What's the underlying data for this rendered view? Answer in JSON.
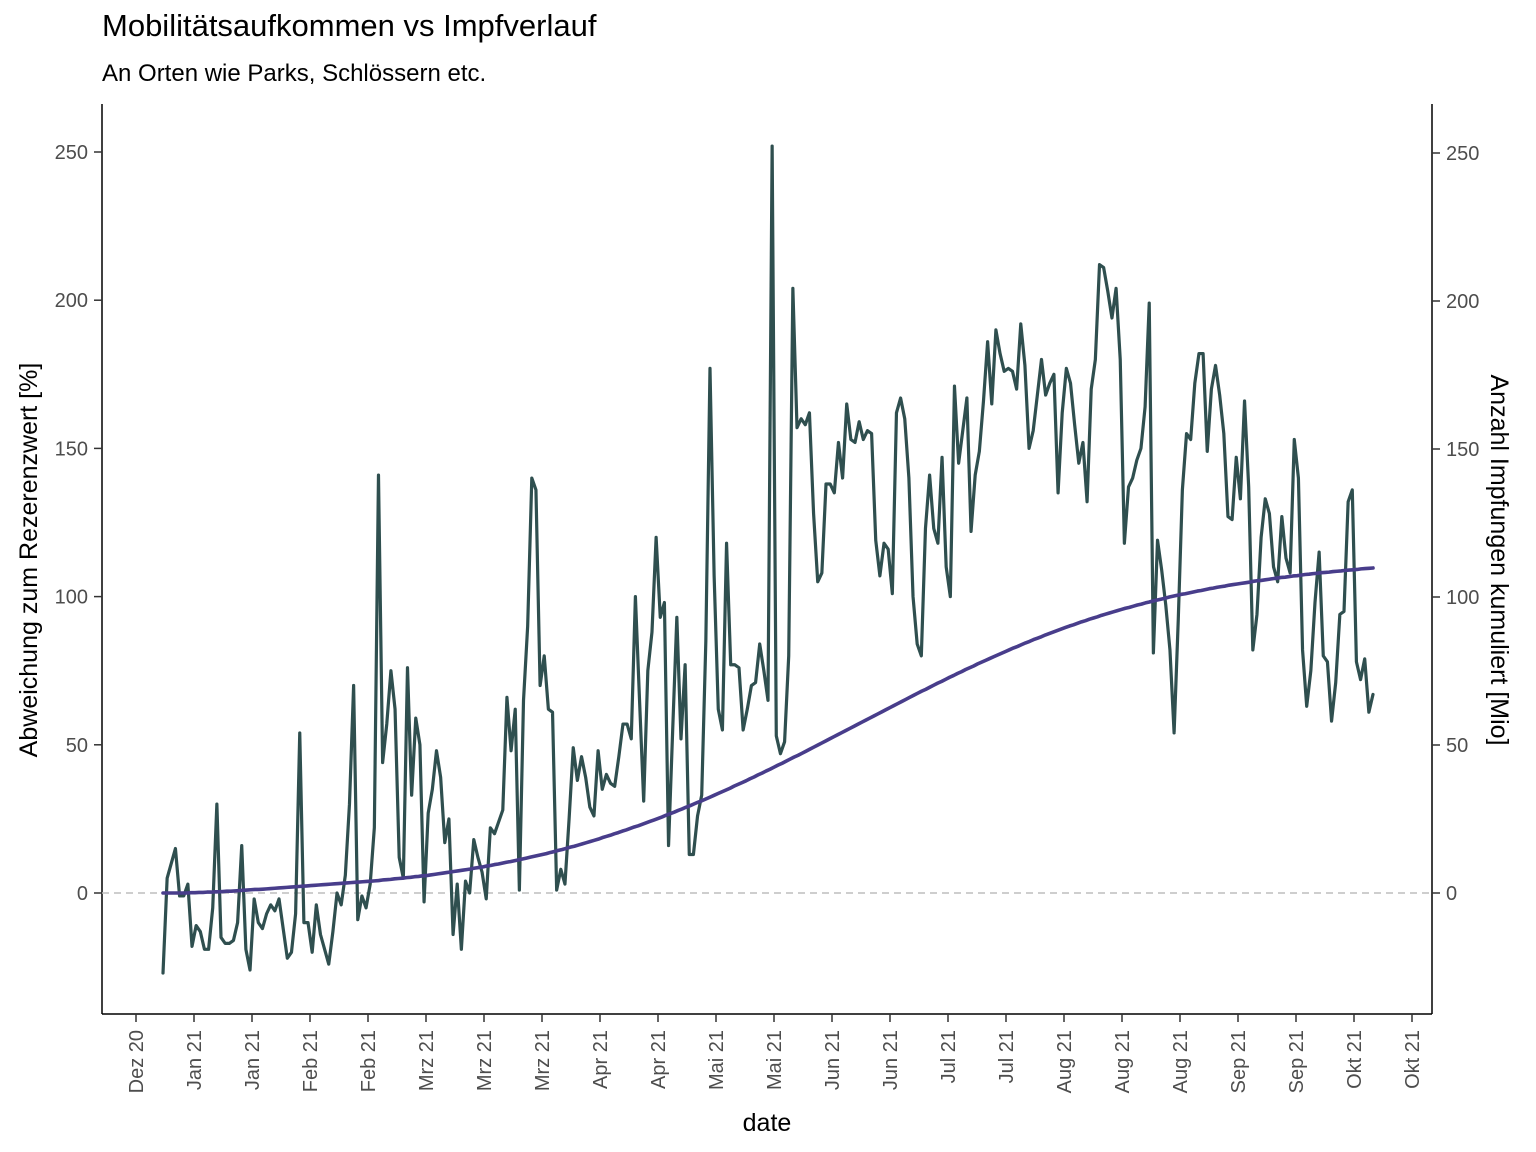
{
  "chart_data": {
    "type": "line",
    "title": "Mobilitätsaufkommen vs Impfverlauf",
    "subtitle": "An Orten wie Parks, Schlössern etc.",
    "xlabel": "date",
    "ylabel": "Abweichung zum Rezerenzwert [%]",
    "ylabel_right": "Anzahl Impfungen kumuliert [Mio]",
    "x_ticks": [
      "Dez 20",
      "Jan 21",
      "Jan 21",
      "Feb 21",
      "Feb 21",
      "Mrz 21",
      "Mrz 21",
      "Mrz 21",
      "Apr 21",
      "Apr 21",
      "Mai 21",
      "Mai 21",
      "Jun 21",
      "Jun 21",
      "Jul 21",
      "Jul 21",
      "Aug 21",
      "Aug 21",
      "Aug 21",
      "Sep 21",
      "Sep 21",
      "Okt 21",
      "Okt 21"
    ],
    "y_ticks_left": [
      0,
      50,
      100,
      150,
      200,
      250
    ],
    "y_ticks_right": [
      0,
      50,
      100,
      150,
      200,
      250
    ],
    "ylim": [
      -41,
      266
    ],
    "reference_line": 0,
    "grid": false,
    "series": [
      {
        "name": "",
        "color": "#2f4f4f",
        "values": [
          -27,
          5,
          10,
          15,
          -1,
          -1,
          3,
          -18,
          -11,
          -13,
          -19,
          -19,
          -5,
          30,
          -15,
          -17,
          -17,
          -16,
          -10,
          16,
          -19,
          -26,
          -2,
          -10,
          -12,
          -7,
          -4,
          -6,
          -2,
          -12,
          -22,
          -20,
          -7,
          54,
          -10,
          -10,
          -20,
          -4,
          -14,
          -19,
          -24,
          -13,
          0,
          -4,
          6,
          30,
          70,
          -9,
          -1,
          -5,
          3,
          22,
          141,
          44,
          57,
          75,
          62,
          12,
          5,
          76,
          33,
          59,
          50,
          -3,
          27,
          35,
          48,
          39,
          17,
          25,
          -14,
          3,
          -19,
          4,
          0,
          18,
          12,
          7,
          -2,
          22,
          20,
          24,
          28,
          66,
          48,
          62,
          1,
          65,
          90,
          140,
          136,
          70,
          80,
          62,
          61,
          1,
          8,
          3,
          25,
          49,
          38,
          46,
          39,
          29,
          26,
          48,
          35,
          40,
          37,
          36,
          46,
          57,
          57,
          52,
          100,
          65,
          31,
          75,
          88,
          120,
          93,
          98,
          16,
          55,
          93,
          52,
          77,
          13,
          13,
          26,
          33,
          85,
          177,
          107,
          62,
          55,
          118,
          77,
          77,
          76,
          55,
          62,
          70,
          71,
          84,
          75,
          65,
          252,
          53,
          47,
          51,
          80,
          204,
          157,
          160,
          158,
          162,
          128,
          105,
          108,
          138,
          138,
          135,
          152,
          140,
          165,
          153,
          152,
          159,
          153,
          156,
          155,
          119,
          107,
          118,
          116,
          101,
          162,
          167,
          160,
          140,
          100,
          84,
          80,
          123,
          141,
          123,
          118,
          147,
          110,
          100,
          171,
          145,
          156,
          167,
          122,
          141,
          149,
          166,
          186,
          165,
          190,
          182,
          176,
          177,
          176,
          170,
          192,
          178,
          150,
          156,
          168,
          180,
          168,
          172,
          175,
          135,
          162,
          177,
          172,
          158,
          145,
          152,
          132,
          170,
          180,
          212,
          211,
          203,
          194,
          204,
          180,
          118,
          137,
          140,
          146,
          150,
          164,
          199,
          81,
          119,
          109,
          97,
          82,
          54,
          92,
          136,
          155,
          153,
          172,
          182,
          182,
          149,
          170,
          178,
          168,
          155,
          127,
          126,
          147,
          133,
          166,
          137,
          82,
          94,
          120,
          133,
          128,
          110,
          105,
          127,
          113,
          108,
          153,
          140,
          82,
          63,
          75,
          98,
          115,
          80,
          78,
          58,
          71,
          94,
          95,
          132,
          136,
          78,
          72,
          79,
          61,
          67
        ]
      },
      {
        "name": "",
        "color": "#483d8b",
        "values": [
          0,
          0,
          0,
          0,
          0,
          0,
          0,
          0.1,
          0.1,
          0.2,
          0.2,
          0.3,
          0.3,
          0.4,
          0.4,
          0.5,
          0.6,
          0.6,
          0.7,
          0.8,
          0.9,
          1,
          1.1,
          1.2,
          1.2,
          1.3,
          1.4,
          1.5,
          1.6,
          1.7,
          1.8,
          1.9,
          2,
          2.1,
          2.2,
          2.3,
          2.4,
          2.5,
          2.6,
          2.7,
          2.8,
          2.9,
          3,
          3.1,
          3.2,
          3.3,
          3.4,
          3.5,
          3.6,
          3.7,
          3.8,
          3.9,
          4,
          4.1,
          4.2,
          4.4,
          4.5,
          4.6,
          4.8,
          4.9,
          5,
          5.2,
          5.3,
          5.5,
          5.6,
          5.8,
          5.9,
          6.1,
          6.3,
          6.5,
          6.7,
          6.9,
          7.1,
          7.3,
          7.5,
          7.7,
          7.9,
          8.1,
          8.4,
          8.6,
          8.8,
          9.1,
          9.3,
          9.6,
          9.8,
          10.1,
          10.4,
          10.6,
          10.9,
          11.2,
          11.5,
          11.8,
          12.1,
          12.4,
          12.7,
          13,
          13.3,
          13.7,
          14,
          14.4,
          14.7,
          15.1,
          15.5,
          15.8,
          16.2,
          16.6,
          17,
          17.4,
          17.8,
          18.2,
          18.7,
          19.1,
          19.5,
          20,
          20.4,
          20.9,
          21.3,
          21.8,
          22.3,
          22.7,
          23.2,
          23.7,
          24.2,
          24.7,
          25.2,
          25.7,
          26.3,
          26.8,
          27.3,
          27.9,
          28.4,
          29,
          29.5,
          30.1,
          30.7,
          31.2,
          31.8,
          32.4,
          33,
          33.6,
          34.2,
          34.8,
          35.4,
          36.1,
          36.7,
          37.3,
          37.9,
          38.6,
          39.2,
          39.9,
          40.5,
          41.2,
          41.8,
          42.5,
          43.2,
          43.8,
          44.5,
          45.2,
          45.9,
          46.5,
          47.2,
          47.9,
          48.6,
          49.3,
          50,
          50.7,
          51.4,
          52.1,
          52.8,
          53.5,
          54.2,
          54.9,
          55.6,
          56.3,
          57,
          57.7,
          58.4,
          59.1,
          59.8,
          60.5,
          61.2,
          61.9,
          62.6,
          63.3,
          64,
          64.7,
          65.4,
          66.1,
          66.8,
          67.5,
          68.2,
          68.8,
          69.5,
          70.2,
          70.9,
          71.5,
          72.2,
          72.9,
          73.5,
          74.2,
          74.8,
          75.5,
          76.1,
          76.7,
          77.4,
          78,
          78.6,
          79.2,
          79.8,
          80.4,
          81,
          81.6,
          82.2,
          82.8,
          83.3,
          83.9,
          84.5,
          85,
          85.6,
          86.1,
          86.6,
          87.2,
          87.7,
          88.2,
          88.7,
          89.2,
          89.7,
          90.2,
          90.6,
          91.1,
          91.6,
          92,
          92.5,
          92.9,
          93.3,
          93.8,
          94.2,
          94.6,
          95,
          95.4,
          95.8,
          96.2,
          96.5,
          96.9,
          97.3,
          97.6,
          98,
          98.3,
          98.7,
          99,
          99.3,
          99.6,
          100,
          100.3,
          100.6,
          100.9,
          101.1,
          101.4,
          101.7,
          102,
          102.2,
          102.5,
          102.8,
          103,
          103.3,
          103.5,
          103.7,
          104,
          104.2,
          104.4,
          104.6,
          104.8,
          105,
          105.3,
          105.5,
          105.6,
          105.8,
          106,
          106.2,
          106.4,
          106.6,
          106.7,
          106.9,
          107.1,
          107.2,
          107.4,
          107.6,
          107.7,
          107.9,
          108,
          108.2,
          108.3,
          108.4,
          108.6,
          108.7,
          108.8,
          109,
          109.1,
          109.2,
          109.3,
          109.5,
          109.6,
          109.7,
          109.8
        ]
      }
    ]
  }
}
